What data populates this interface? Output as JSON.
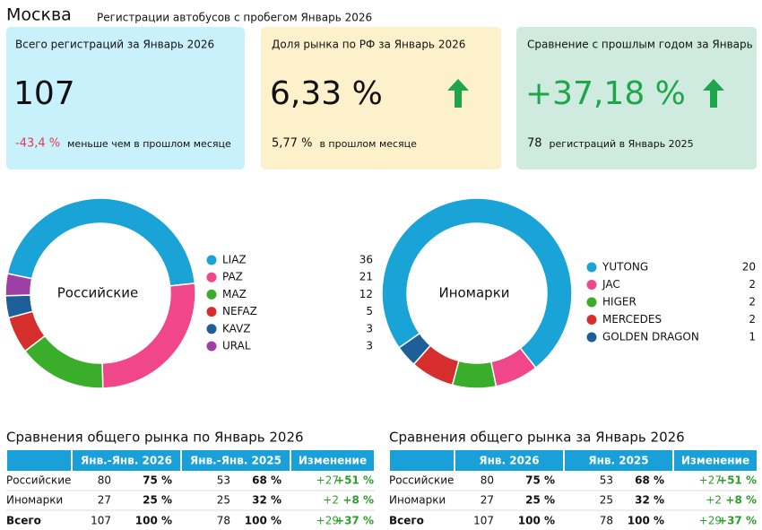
{
  "header": {
    "title": "Москва",
    "subtitle": "Регистрации автобусов с пробегом Январь 2026"
  },
  "cards": [
    {
      "title": "Всего регистраций за Январь 2026",
      "value": "107",
      "change": "-43,4 %",
      "note": "меньше чем в прошлом месяце"
    },
    {
      "title": "Доля рынка по РФ за Январь 2026",
      "value": "6,33 %",
      "change": "5,77 %",
      "note": "в прошлом месяце"
    },
    {
      "title": "Сравнение с прошлым годом за Январь",
      "value": "+37,18 %",
      "change": "78",
      "note": "регистраций в Январь 2025"
    }
  ],
  "chart_data": [
    {
      "type": "donut",
      "center_label": "Российские",
      "categories": [
        "LIAZ",
        "PAZ",
        "MAZ",
        "NEFAZ",
        "KAVZ",
        "URAL"
      ],
      "values": [
        36,
        21,
        12,
        5,
        3,
        3
      ],
      "colors": [
        "#1aa3d6",
        "#f0478a",
        "#3aae2a",
        "#d62d2d",
        "#1f5f99",
        "#9e3fa5"
      ]
    },
    {
      "type": "donut",
      "center_label": "Иномарки",
      "categories": [
        "YUTONG",
        "JAC",
        "HIGER",
        "MERCEDES",
        "GOLDEN DRAGON"
      ],
      "values": [
        20,
        2,
        2,
        2,
        1
      ],
      "colors": [
        "#1aa3d6",
        "#f0478a",
        "#3aae2a",
        "#d62d2d",
        "#1f5f99"
      ]
    }
  ],
  "tables": [
    {
      "title": "Сравнения общего рынка по Январь 2026",
      "header": [
        "Янв.-Янв. 2026",
        "Янв.-Янв. 2025",
        "Изменение"
      ],
      "rows": [
        [
          "Российские",
          "80",
          "75 %",
          "53",
          "68 %",
          "+27",
          "+51 %"
        ],
        [
          "Иномарки",
          "27",
          "25 %",
          "25",
          "32 %",
          "+2",
          "+8 %"
        ],
        [
          "Всего",
          "107",
          "100 %",
          "78",
          "100 %",
          "+29",
          "+37 %"
        ]
      ]
    },
    {
      "title": "Сравнения общего рынка за Январь 2026",
      "header": [
        "Янв. 2026",
        "Янв. 2025",
        "Изменение"
      ],
      "rows": [
        [
          "Российские",
          "80",
          "75 %",
          "53",
          "68 %",
          "+27",
          "+51 %"
        ],
        [
          "Иномарки",
          "27",
          "25 %",
          "25",
          "32 %",
          "+2",
          "+8 %"
        ],
        [
          "Всего",
          "107",
          "100 %",
          "78",
          "100 %",
          "+29",
          "+37 %"
        ]
      ]
    }
  ]
}
